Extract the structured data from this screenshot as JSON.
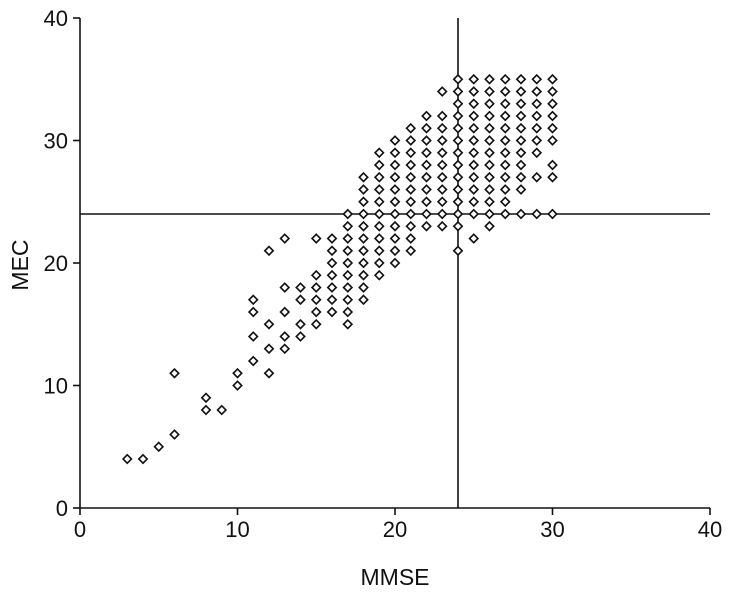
{
  "chart_data": {
    "type": "scatter",
    "title": "",
    "xlabel": "MMSE",
    "ylabel": "MEC",
    "xlim": [
      0,
      40
    ],
    "ylim": [
      0,
      40
    ],
    "xticks": [
      0,
      10,
      20,
      30,
      40
    ],
    "yticks": [
      0,
      10,
      20,
      30,
      40
    ],
    "grid": false,
    "legend": "none",
    "marker": "diamond",
    "reference_lines": {
      "x": 24,
      "y": 24
    },
    "points": [
      [
        3,
        4
      ],
      [
        4,
        4
      ],
      [
        5,
        5
      ],
      [
        6,
        6
      ],
      [
        6,
        11
      ],
      [
        8,
        8
      ],
      [
        8,
        9
      ],
      [
        9,
        8
      ],
      [
        10,
        10
      ],
      [
        10,
        11
      ],
      [
        11,
        12
      ],
      [
        11,
        14
      ],
      [
        11,
        16
      ],
      [
        11,
        17
      ],
      [
        12,
        11
      ],
      [
        12,
        13
      ],
      [
        12,
        15
      ],
      [
        12,
        21
      ],
      [
        13,
        13
      ],
      [
        13,
        14
      ],
      [
        13,
        16
      ],
      [
        13,
        18
      ],
      [
        13,
        22
      ],
      [
        14,
        14
      ],
      [
        14,
        15
      ],
      [
        14,
        17
      ],
      [
        14,
        18
      ],
      [
        15,
        15
      ],
      [
        15,
        16
      ],
      [
        15,
        17
      ],
      [
        15,
        18
      ],
      [
        15,
        19
      ],
      [
        15,
        22
      ],
      [
        16,
        16
      ],
      [
        16,
        17
      ],
      [
        16,
        18
      ],
      [
        16,
        19
      ],
      [
        16,
        20
      ],
      [
        16,
        21
      ],
      [
        16,
        22
      ],
      [
        17,
        15
      ],
      [
        17,
        16
      ],
      [
        17,
        17
      ],
      [
        17,
        18
      ],
      [
        17,
        19
      ],
      [
        17,
        20
      ],
      [
        17,
        21
      ],
      [
        17,
        22
      ],
      [
        17,
        23
      ],
      [
        17,
        24
      ],
      [
        18,
        17
      ],
      [
        18,
        18
      ],
      [
        18,
        19
      ],
      [
        18,
        20
      ],
      [
        18,
        21
      ],
      [
        18,
        22
      ],
      [
        18,
        23
      ],
      [
        18,
        24
      ],
      [
        18,
        25
      ],
      [
        18,
        26
      ],
      [
        18,
        27
      ],
      [
        19,
        19
      ],
      [
        19,
        20
      ],
      [
        19,
        21
      ],
      [
        19,
        22
      ],
      [
        19,
        23
      ],
      [
        19,
        24
      ],
      [
        19,
        25
      ],
      [
        19,
        26
      ],
      [
        19,
        27
      ],
      [
        19,
        28
      ],
      [
        19,
        29
      ],
      [
        20,
        20
      ],
      [
        20,
        21
      ],
      [
        20,
        22
      ],
      [
        20,
        23
      ],
      [
        20,
        24
      ],
      [
        20,
        25
      ],
      [
        20,
        26
      ],
      [
        20,
        27
      ],
      [
        20,
        28
      ],
      [
        20,
        29
      ],
      [
        20,
        30
      ],
      [
        21,
        21
      ],
      [
        21,
        22
      ],
      [
        21,
        23
      ],
      [
        21,
        24
      ],
      [
        21,
        25
      ],
      [
        21,
        26
      ],
      [
        21,
        27
      ],
      [
        21,
        28
      ],
      [
        21,
        29
      ],
      [
        21,
        30
      ],
      [
        21,
        31
      ],
      [
        22,
        23
      ],
      [
        22,
        24
      ],
      [
        22,
        25
      ],
      [
        22,
        26
      ],
      [
        22,
        27
      ],
      [
        22,
        28
      ],
      [
        22,
        29
      ],
      [
        22,
        30
      ],
      [
        22,
        31
      ],
      [
        22,
        32
      ],
      [
        23,
        23
      ],
      [
        23,
        24
      ],
      [
        23,
        25
      ],
      [
        23,
        26
      ],
      [
        23,
        27
      ],
      [
        23,
        28
      ],
      [
        23,
        29
      ],
      [
        23,
        30
      ],
      [
        23,
        31
      ],
      [
        23,
        32
      ],
      [
        23,
        34
      ],
      [
        24,
        21
      ],
      [
        24,
        23
      ],
      [
        24,
        24
      ],
      [
        24,
        25
      ],
      [
        24,
        26
      ],
      [
        24,
        27
      ],
      [
        24,
        28
      ],
      [
        24,
        29
      ],
      [
        24,
        30
      ],
      [
        24,
        31
      ],
      [
        24,
        32
      ],
      [
        24,
        33
      ],
      [
        24,
        34
      ],
      [
        24,
        35
      ],
      [
        25,
        22
      ],
      [
        25,
        24
      ],
      [
        25,
        25
      ],
      [
        25,
        26
      ],
      [
        25,
        27
      ],
      [
        25,
        28
      ],
      [
        25,
        29
      ],
      [
        25,
        30
      ],
      [
        25,
        31
      ],
      [
        25,
        32
      ],
      [
        25,
        33
      ],
      [
        25,
        34
      ],
      [
        25,
        35
      ],
      [
        26,
        23
      ],
      [
        26,
        24
      ],
      [
        26,
        25
      ],
      [
        26,
        26
      ],
      [
        26,
        27
      ],
      [
        26,
        28
      ],
      [
        26,
        29
      ],
      [
        26,
        30
      ],
      [
        26,
        31
      ],
      [
        26,
        32
      ],
      [
        26,
        33
      ],
      [
        26,
        34
      ],
      [
        26,
        35
      ],
      [
        27,
        24
      ],
      [
        27,
        25
      ],
      [
        27,
        26
      ],
      [
        27,
        27
      ],
      [
        27,
        28
      ],
      [
        27,
        29
      ],
      [
        27,
        30
      ],
      [
        27,
        31
      ],
      [
        27,
        32
      ],
      [
        27,
        33
      ],
      [
        27,
        34
      ],
      [
        27,
        35
      ],
      [
        28,
        24
      ],
      [
        28,
        26
      ],
      [
        28,
        27
      ],
      [
        28,
        28
      ],
      [
        28,
        29
      ],
      [
        28,
        30
      ],
      [
        28,
        31
      ],
      [
        28,
        32
      ],
      [
        28,
        33
      ],
      [
        28,
        34
      ],
      [
        28,
        35
      ],
      [
        29,
        24
      ],
      [
        29,
        27
      ],
      [
        29,
        29
      ],
      [
        29,
        30
      ],
      [
        29,
        31
      ],
      [
        29,
        32
      ],
      [
        29,
        33
      ],
      [
        29,
        34
      ],
      [
        29,
        35
      ],
      [
        30,
        24
      ],
      [
        30,
        27
      ],
      [
        30,
        28
      ],
      [
        30,
        30
      ],
      [
        30,
        31
      ],
      [
        30,
        32
      ],
      [
        30,
        33
      ],
      [
        30,
        34
      ],
      [
        30,
        35
      ]
    ]
  },
  "colors": {
    "ink": "#111111",
    "background": "#ffffff"
  }
}
